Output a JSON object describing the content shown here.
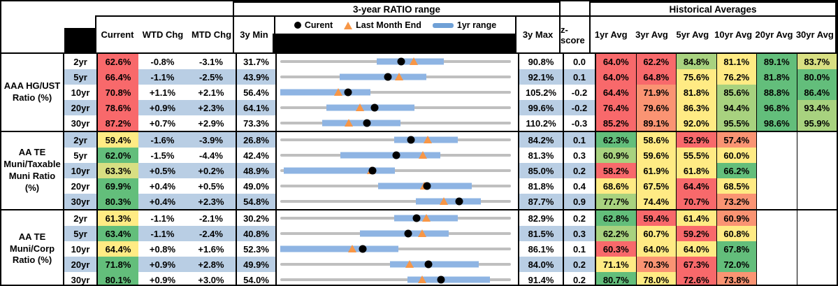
{
  "header": {
    "range_title": "3-year RATIO range",
    "hist_title": "Historical Averages",
    "cols": {
      "current": "Current",
      "wtd": "WTD Chg",
      "mtd": "MTD Chg",
      "min": "3y Min",
      "max": "3y Max",
      "z": "z-score"
    },
    "avg_cols": [
      "1yr Avg",
      "3yr Avg",
      "5yr Avg",
      "10yr Avg",
      "20yr Avg",
      "30yr Avg"
    ],
    "legend": {
      "current": "Curent",
      "last_month": "Last Month End",
      "range": "1yr range"
    }
  },
  "colors": {
    "palette": {
      "red": "#F8696B",
      "orange": "#FA9473",
      "yellow": "#FFEB84",
      "yellowgreen": "#D8DF82",
      "lightgreen": "#A8D27F",
      "green": "#63BE7B"
    },
    "stripe": "#B9CEE4",
    "chart_track": "#BFBFBF",
    "chart_range_bar": "#8EB4E3",
    "legend_range_bar": "#6FA0D6",
    "marker_triangle": "#F79646",
    "marker_dot": "#000000"
  },
  "chart_data": {
    "type": "table",
    "description": "Muni ratio monitor: current vs 3-year range (dot = current, triangle = last month end, bar = 1yr range) plus historical averages heat map",
    "groups": [
      {
        "label": "AAA HG/UST\nRatio (%)",
        "rows": [
          {
            "tenor": "2yr",
            "current": "62.6%",
            "current_color": "red",
            "wtd": "-0.8%",
            "mtd": "-3.1%",
            "min": "31.7%",
            "max": "90.8%",
            "z": "0.0",
            "chart": {
              "min": 31.7,
              "max": 90.8,
              "cur": 62.6,
              "lme": 65.9,
              "lo": 56.4,
              "hi": 73.6
            },
            "avgs": [
              {
                "v": "64.0%",
                "c": "red"
              },
              {
                "v": "62.2%",
                "c": "red"
              },
              {
                "v": "84.8%",
                "c": "lightgreen"
              },
              {
                "v": "81.1%",
                "c": "yellow"
              },
              {
                "v": "89.1%",
                "c": "green"
              },
              {
                "v": "83.7%",
                "c": "yellowgreen"
              }
            ]
          },
          {
            "tenor": "5yr",
            "current": "66.4%",
            "current_color": "red",
            "wtd": "-1.1%",
            "mtd": "-2.5%",
            "min": "43.9%",
            "max": "92.1%",
            "z": "0.1",
            "chart": {
              "min": 43.9,
              "max": 92.1,
              "cur": 66.4,
              "lme": 68.8,
              "lo": 56.3,
              "hi": 74.4
            },
            "avgs": [
              {
                "v": "64.0%",
                "c": "red"
              },
              {
                "v": "64.8%",
                "c": "red"
              },
              {
                "v": "75.6%",
                "c": "yellow"
              },
              {
                "v": "76.2%",
                "c": "yellow"
              },
              {
                "v": "81.8%",
                "c": "green"
              },
              {
                "v": "80.0%",
                "c": "green"
              }
            ]
          },
          {
            "tenor": "10yr",
            "current": "70.8%",
            "current_color": "red",
            "wtd": "+1.1%",
            "mtd": "+2.1%",
            "min": "56.4%",
            "max": "105.2%",
            "z": "-0.2",
            "chart": {
              "min": 56.4,
              "max": 105.2,
              "cur": 70.8,
              "lme": 68.7,
              "lo": 56.4,
              "hi": 75.5
            },
            "avgs": [
              {
                "v": "64.4%",
                "c": "red"
              },
              {
                "v": "71.9%",
                "c": "orange"
              },
              {
                "v": "81.8%",
                "c": "yellow"
              },
              {
                "v": "85.6%",
                "c": "lightgreen"
              },
              {
                "v": "88.8%",
                "c": "green"
              },
              {
                "v": "86.4%",
                "c": "green"
              }
            ]
          },
          {
            "tenor": "20yr",
            "current": "78.6%",
            "current_color": "red",
            "wtd": "+0.9%",
            "mtd": "+2.3%",
            "min": "64.1%",
            "max": "99.6%",
            "z": "-0.2",
            "chart": {
              "min": 64.1,
              "max": 99.6,
              "cur": 78.6,
              "lme": 76.4,
              "lo": 71.2,
              "hi": 84.8
            },
            "avgs": [
              {
                "v": "76.4%",
                "c": "red"
              },
              {
                "v": "79.6%",
                "c": "orange"
              },
              {
                "v": "86.3%",
                "c": "yellow"
              },
              {
                "v": "94.4%",
                "c": "lightgreen"
              },
              {
                "v": "96.8%",
                "c": "green"
              },
              {
                "v": "93.4%",
                "c": "lightgreen"
              }
            ]
          },
          {
            "tenor": "30yr",
            "current": "87.2%",
            "current_color": "red",
            "wtd": "+0.7%",
            "mtd": "+2.9%",
            "min": "73.3%",
            "max": "110.2%",
            "z": "-0.3",
            "chart": {
              "min": 73.3,
              "max": 110.2,
              "cur": 87.2,
              "lme": 84.3,
              "lo": 80.0,
              "hi": 92.5
            },
            "avgs": [
              {
                "v": "85.2%",
                "c": "red"
              },
              {
                "v": "89.1%",
                "c": "orange"
              },
              {
                "v": "92.0%",
                "c": "yellow"
              },
              {
                "v": "95.5%",
                "c": "lightgreen"
              },
              {
                "v": "98.6%",
                "c": "green"
              },
              {
                "v": "95.9%",
                "c": "lightgreen"
              }
            ]
          }
        ]
      },
      {
        "label": "AA TE\nMuni/Taxable\nMuni Ratio\n(%)",
        "rows": [
          {
            "tenor": "2yr",
            "current": "59.4%",
            "current_color": "yellow",
            "wtd": "-1.6%",
            "mtd": "-3.9%",
            "min": "26.8%",
            "max": "84.2%",
            "z": "0.1",
            "chart": {
              "min": 26.8,
              "max": 84.2,
              "cur": 59.4,
              "lme": 63.5,
              "lo": 55.2,
              "hi": 70.9
            },
            "avgs": [
              {
                "v": "62.3%",
                "c": "green"
              },
              {
                "v": "58.6%",
                "c": "yellow"
              },
              {
                "v": "52.9%",
                "c": "red"
              },
              {
                "v": "57.4%",
                "c": "orange"
              },
              null,
              null
            ]
          },
          {
            "tenor": "5yr",
            "current": "62.0%",
            "current_color": "green",
            "wtd": "-1.5%",
            "mtd": "-4.4%",
            "min": "42.4%",
            "max": "81.3%",
            "z": "0.3",
            "chart": {
              "min": 42.4,
              "max": 81.3,
              "cur": 62.0,
              "lme": 66.4,
              "lo": 52.5,
              "hi": 69.4
            },
            "avgs": [
              {
                "v": "60.9%",
                "c": "lightgreen"
              },
              {
                "v": "59.6%",
                "c": "yellow"
              },
              {
                "v": "55.5%",
                "c": "yellow"
              },
              {
                "v": "60.0%",
                "c": "yellow"
              },
              null,
              null
            ]
          },
          {
            "tenor": "10yr",
            "current": "63.3%",
            "current_color": "yellowgreen",
            "wtd": "+0.5%",
            "mtd": "+0.2%",
            "min": "48.9%",
            "max": "85.0%",
            "z": "0.2",
            "chart": {
              "min": 48.9,
              "max": 85.0,
              "cur": 63.3,
              "lme": 63.1,
              "lo": 49.4,
              "hi": 66.8
            },
            "avgs": [
              {
                "v": "58.2%",
                "c": "red"
              },
              {
                "v": "61.9%",
                "c": "yellow"
              },
              {
                "v": "61.8%",
                "c": "yellow"
              },
              {
                "v": "66.2%",
                "c": "green"
              },
              null,
              null
            ]
          },
          {
            "tenor": "20yr",
            "current": "69.9%",
            "current_color": "green",
            "wtd": "+0.4%",
            "mtd": "+0.5%",
            "min": "49.0%",
            "max": "81.8%",
            "z": "0.4",
            "chart": {
              "min": 49.0,
              "max": 81.8,
              "cur": 69.9,
              "lme": 69.5,
              "lo": 62.9,
              "hi": 76.2
            },
            "avgs": [
              {
                "v": "68.6%",
                "c": "yellow"
              },
              {
                "v": "67.5%",
                "c": "yellow"
              },
              {
                "v": "64.4%",
                "c": "red"
              },
              {
                "v": "68.5%",
                "c": "yellow"
              },
              null,
              null
            ]
          },
          {
            "tenor": "30yr",
            "current": "80.3%",
            "current_color": "green",
            "wtd": "+0.4%",
            "mtd": "+2.3%",
            "min": "54.8%",
            "max": "87.7%",
            "z": "0.9",
            "chart": {
              "min": 54.8,
              "max": 87.7,
              "cur": 80.3,
              "lme": 78.1,
              "lo": 74.1,
              "hi": 83.4
            },
            "avgs": [
              {
                "v": "77.7%",
                "c": "lightgreen"
              },
              {
                "v": "74.4%",
                "c": "yellow"
              },
              {
                "v": "70.7%",
                "c": "red"
              },
              {
                "v": "73.2%",
                "c": "orange"
              },
              null,
              null
            ]
          }
        ]
      },
      {
        "label": "AA TE\nMuni/Corp\nRatio (%)",
        "rows": [
          {
            "tenor": "2yr",
            "current": "61.3%",
            "current_color": "yellow",
            "wtd": "-1.1%",
            "mtd": "-2.1%",
            "min": "30.2%",
            "max": "82.9%",
            "z": "0.2",
            "chart": {
              "min": 30.2,
              "max": 82.9,
              "cur": 61.3,
              "lme": 63.5,
              "lo": 56.3,
              "hi": 70.8
            },
            "avgs": [
              {
                "v": "62.8%",
                "c": "green"
              },
              {
                "v": "59.4%",
                "c": "red"
              },
              {
                "v": "61.4%",
                "c": "yellow"
              },
              {
                "v": "60.9%",
                "c": "orange"
              },
              null,
              null
            ]
          },
          {
            "tenor": "5yr",
            "current": "63.4%",
            "current_color": "green",
            "wtd": "-1.1%",
            "mtd": "-2.4%",
            "min": "40.8%",
            "max": "81.5%",
            "z": "0.3",
            "chart": {
              "min": 40.8,
              "max": 81.5,
              "cur": 63.4,
              "lme": 65.8,
              "lo": 54.8,
              "hi": 70.5
            },
            "avgs": [
              {
                "v": "62.2%",
                "c": "lightgreen"
              },
              {
                "v": "60.7%",
                "c": "yellow"
              },
              {
                "v": "59.2%",
                "c": "red"
              },
              {
                "v": "60.8%",
                "c": "yellow"
              },
              null,
              null
            ]
          },
          {
            "tenor": "10yr",
            "current": "64.4%",
            "current_color": "yellow",
            "wtd": "+0.8%",
            "mtd": "+1.6%",
            "min": "52.3%",
            "max": "86.1%",
            "z": "0.1",
            "chart": {
              "min": 52.3,
              "max": 86.1,
              "cur": 64.4,
              "lme": 62.9,
              "lo": 52.3,
              "hi": 69.6
            },
            "avgs": [
              {
                "v": "60.3%",
                "c": "red"
              },
              {
                "v": "64.0%",
                "c": "yellow"
              },
              {
                "v": "64.0%",
                "c": "yellow"
              },
              {
                "v": "67.8%",
                "c": "green"
              },
              null,
              null
            ]
          },
          {
            "tenor": "20yr",
            "current": "71.8%",
            "current_color": "green",
            "wtd": "+0.9%",
            "mtd": "+2.8%",
            "min": "49.9%",
            "max": "84.0%",
            "z": "0.2",
            "chart": {
              "min": 49.9,
              "max": 84.0,
              "cur": 71.8,
              "lme": 69.0,
              "lo": 66.1,
              "hi": 79.2
            },
            "avgs": [
              {
                "v": "71.1%",
                "c": "yellow"
              },
              {
                "v": "70.3%",
                "c": "orange"
              },
              {
                "v": "67.3%",
                "c": "red"
              },
              {
                "v": "72.0%",
                "c": "green"
              },
              null,
              null
            ]
          },
          {
            "tenor": "30yr",
            "current": "80.1%",
            "current_color": "green",
            "wtd": "+0.9%",
            "mtd": "+3.0%",
            "min": "54.0%",
            "max": "91.4%",
            "z": "0.2",
            "chart": {
              "min": 54.0,
              "max": 91.4,
              "cur": 80.1,
              "lme": 77.0,
              "lo": 74.6,
              "hi": 88.0
            },
            "avgs": [
              {
                "v": "80.7%",
                "c": "green"
              },
              {
                "v": "78.0%",
                "c": "yellow"
              },
              {
                "v": "72.6%",
                "c": "red"
              },
              {
                "v": "73.8%",
                "c": "orange"
              },
              null,
              null
            ]
          }
        ]
      }
    ]
  }
}
